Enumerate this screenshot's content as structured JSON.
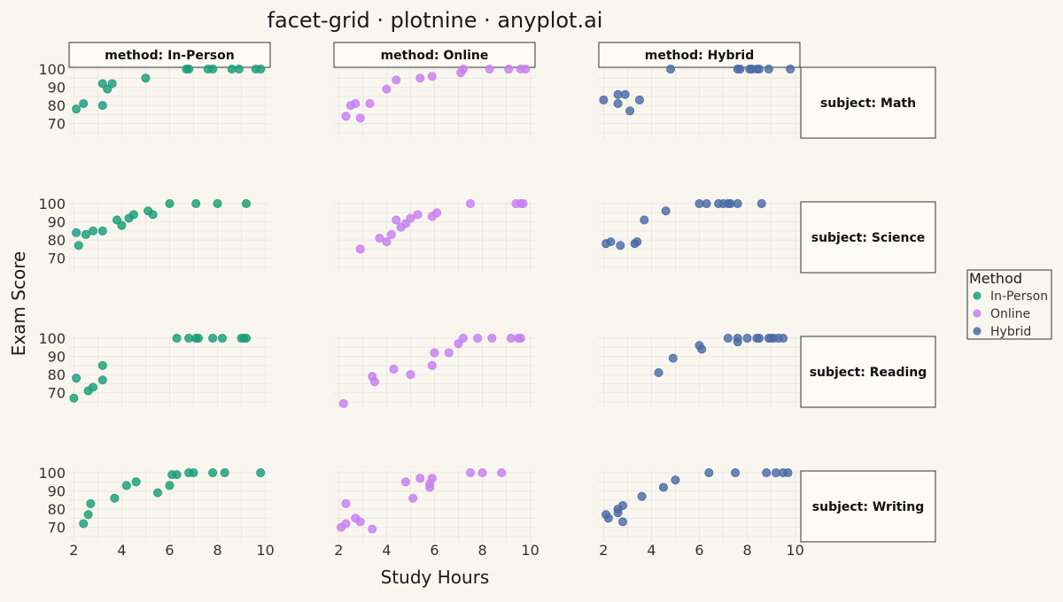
{
  "chart_data": {
    "type": "scatter",
    "title": "facet-grid · plotnine · anyplot.ai",
    "xlabel": "Study Hours",
    "ylabel": "Exam Score",
    "xlim": [
      1.8,
      10.2
    ],
    "ylim": [
      62,
      101
    ],
    "x_ticks": [
      "2",
      "4",
      "6",
      "8",
      "10"
    ],
    "y_ticks": [
      "70",
      "80",
      "90",
      "100"
    ],
    "grid": true,
    "legend": {
      "title": "Method",
      "position": "right",
      "entries": [
        {
          "label": "In-Person",
          "color": "#1a9e77"
        },
        {
          "label": "Online",
          "color": "#c77ef0"
        },
        {
          "label": "Hybrid",
          "color": "#4a6aa5"
        }
      ]
    },
    "col_facets": [
      "method: In-Person",
      "method: Online",
      "method: Hybrid"
    ],
    "row_facets": [
      "subject: Math",
      "subject: Science",
      "subject: Reading",
      "subject: Writing"
    ],
    "panels": [
      {
        "method": "In-Person",
        "subject": "Math",
        "points": [
          [
            2.1,
            78
          ],
          [
            2.4,
            81
          ],
          [
            3.2,
            80
          ],
          [
            3.2,
            92
          ],
          [
            3.4,
            89
          ],
          [
            3.6,
            92
          ],
          [
            5.0,
            95
          ],
          [
            6.7,
            100
          ],
          [
            6.8,
            100
          ],
          [
            7.6,
            100
          ],
          [
            7.8,
            100
          ],
          [
            8.6,
            100
          ],
          [
            8.9,
            100
          ],
          [
            9.6,
            100
          ],
          [
            9.8,
            100
          ]
        ]
      },
      {
        "method": "Online",
        "subject": "Math",
        "points": [
          [
            2.3,
            74
          ],
          [
            2.5,
            80
          ],
          [
            2.7,
            81
          ],
          [
            2.9,
            73
          ],
          [
            3.3,
            81
          ],
          [
            4.0,
            89
          ],
          [
            4.4,
            94
          ],
          [
            5.4,
            95
          ],
          [
            5.9,
            96
          ],
          [
            7.1,
            98
          ],
          [
            7.2,
            100
          ],
          [
            8.3,
            100
          ],
          [
            9.1,
            100
          ],
          [
            9.6,
            100
          ],
          [
            9.8,
            100
          ]
        ]
      },
      {
        "method": "Hybrid",
        "subject": "Math",
        "points": [
          [
            2.0,
            83
          ],
          [
            2.6,
            81
          ],
          [
            2.6,
            86
          ],
          [
            2.9,
            86
          ],
          [
            3.1,
            77
          ],
          [
            3.5,
            83
          ],
          [
            4.8,
            100
          ],
          [
            7.6,
            100
          ],
          [
            7.7,
            100
          ],
          [
            8.1,
            100
          ],
          [
            8.2,
            100
          ],
          [
            8.4,
            100
          ],
          [
            8.5,
            100
          ],
          [
            8.9,
            100
          ],
          [
            9.8,
            100
          ]
        ]
      },
      {
        "method": "In-Person",
        "subject": "Science",
        "points": [
          [
            2.1,
            84
          ],
          [
            2.2,
            77
          ],
          [
            2.5,
            83
          ],
          [
            2.8,
            85
          ],
          [
            3.2,
            85
          ],
          [
            3.8,
            91
          ],
          [
            4.0,
            88
          ],
          [
            4.3,
            92
          ],
          [
            4.5,
            94
          ],
          [
            5.1,
            96
          ],
          [
            5.3,
            94
          ],
          [
            6.0,
            100
          ],
          [
            7.1,
            100
          ],
          [
            8.0,
            100
          ],
          [
            9.2,
            100
          ]
        ]
      },
      {
        "method": "Online",
        "subject": "Science",
        "points": [
          [
            2.9,
            75
          ],
          [
            3.7,
            81
          ],
          [
            4.0,
            79
          ],
          [
            4.2,
            83
          ],
          [
            4.4,
            91
          ],
          [
            4.6,
            87
          ],
          [
            4.8,
            89
          ],
          [
            5.0,
            92
          ],
          [
            5.3,
            94
          ],
          [
            5.9,
            93
          ],
          [
            6.1,
            95
          ],
          [
            7.5,
            100
          ],
          [
            9.4,
            100
          ],
          [
            9.6,
            100
          ],
          [
            9.7,
            100
          ]
        ]
      },
      {
        "method": "Hybrid",
        "subject": "Science",
        "points": [
          [
            2.1,
            78
          ],
          [
            2.3,
            79
          ],
          [
            2.7,
            77
          ],
          [
            3.3,
            78
          ],
          [
            3.4,
            79
          ],
          [
            3.7,
            91
          ],
          [
            4.6,
            96
          ],
          [
            6.0,
            100
          ],
          [
            6.3,
            100
          ],
          [
            6.8,
            100
          ],
          [
            7.0,
            100
          ],
          [
            7.2,
            100
          ],
          [
            7.3,
            100
          ],
          [
            7.6,
            100
          ],
          [
            8.6,
            100
          ]
        ]
      },
      {
        "method": "In-Person",
        "subject": "Reading",
        "points": [
          [
            2.0,
            67
          ],
          [
            2.1,
            78
          ],
          [
            2.6,
            71
          ],
          [
            2.8,
            73
          ],
          [
            3.2,
            77
          ],
          [
            3.2,
            85
          ],
          [
            6.3,
            100
          ],
          [
            6.8,
            100
          ],
          [
            7.1,
            100
          ],
          [
            7.2,
            100
          ],
          [
            7.8,
            100
          ],
          [
            8.2,
            100
          ],
          [
            9.0,
            100
          ],
          [
            9.1,
            100
          ],
          [
            9.2,
            100
          ]
        ]
      },
      {
        "method": "Online",
        "subject": "Reading",
        "points": [
          [
            2.2,
            64
          ],
          [
            3.4,
            79
          ],
          [
            3.5,
            76
          ],
          [
            4.3,
            83
          ],
          [
            5.0,
            80
          ],
          [
            5.9,
            85
          ],
          [
            6.0,
            92
          ],
          [
            6.6,
            92
          ],
          [
            7.0,
            97
          ],
          [
            7.2,
            100
          ],
          [
            7.8,
            100
          ],
          [
            8.4,
            100
          ],
          [
            9.2,
            100
          ],
          [
            9.5,
            100
          ],
          [
            9.6,
            100
          ]
        ]
      },
      {
        "method": "Hybrid",
        "subject": "Reading",
        "points": [
          [
            4.3,
            81
          ],
          [
            4.9,
            89
          ],
          [
            6.0,
            96
          ],
          [
            6.1,
            94
          ],
          [
            7.2,
            100
          ],
          [
            7.6,
            100
          ],
          [
            7.6,
            98
          ],
          [
            8.0,
            100
          ],
          [
            8.4,
            100
          ],
          [
            8.5,
            100
          ],
          [
            8.9,
            100
          ],
          [
            9.0,
            100
          ],
          [
            9.1,
            100
          ],
          [
            9.3,
            100
          ],
          [
            9.5,
            100
          ]
        ]
      },
      {
        "method": "In-Person",
        "subject": "Writing",
        "points": [
          [
            2.4,
            72
          ],
          [
            2.6,
            77
          ],
          [
            2.7,
            83
          ],
          [
            3.7,
            86
          ],
          [
            4.2,
            93
          ],
          [
            4.6,
            95
          ],
          [
            5.5,
            89
          ],
          [
            6.0,
            93
          ],
          [
            6.1,
            99
          ],
          [
            6.3,
            99
          ],
          [
            6.8,
            100
          ],
          [
            7.0,
            100
          ],
          [
            7.8,
            100
          ],
          [
            8.3,
            100
          ],
          [
            9.8,
            100
          ]
        ]
      },
      {
        "method": "Online",
        "subject": "Writing",
        "points": [
          [
            2.1,
            70
          ],
          [
            2.3,
            83
          ],
          [
            2.3,
            72
          ],
          [
            2.7,
            75
          ],
          [
            2.9,
            73
          ],
          [
            3.4,
            69
          ],
          [
            4.8,
            95
          ],
          [
            5.1,
            86
          ],
          [
            5.4,
            97
          ],
          [
            5.8,
            92
          ],
          [
            5.8,
            94
          ],
          [
            5.9,
            97
          ],
          [
            7.5,
            100
          ],
          [
            8.0,
            100
          ],
          [
            8.8,
            100
          ]
        ]
      },
      {
        "method": "Hybrid",
        "subject": "Writing",
        "points": [
          [
            2.1,
            77
          ],
          [
            2.2,
            75
          ],
          [
            2.6,
            78
          ],
          [
            2.6,
            80
          ],
          [
            2.8,
            73
          ],
          [
            2.8,
            82
          ],
          [
            3.6,
            87
          ],
          [
            4.5,
            92
          ],
          [
            5.0,
            96
          ],
          [
            6.4,
            100
          ],
          [
            7.5,
            100
          ],
          [
            8.8,
            100
          ],
          [
            9.2,
            100
          ],
          [
            9.5,
            100
          ],
          [
            9.7,
            100
          ]
        ]
      }
    ]
  }
}
